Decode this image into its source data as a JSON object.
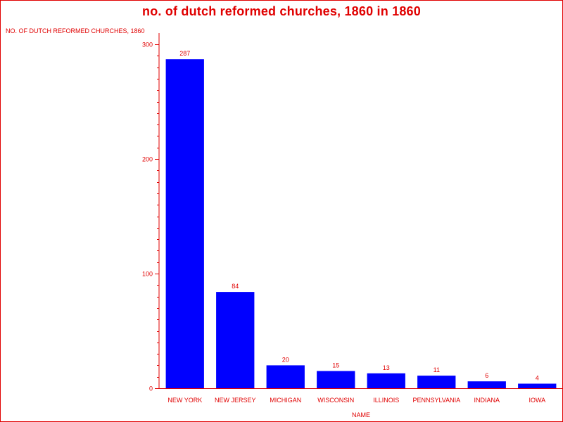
{
  "chart_data": {
    "type": "bar",
    "title": "no. of dutch reformed churches, 1860 in 1860",
    "ylabel": "NO. OF DUTCH REFORMED CHURCHES, 1860",
    "xlabel": "NAME",
    "categories": [
      "NEW YORK",
      "NEW JERSEY",
      "MICHIGAN",
      "WISCONSIN",
      "ILLINOIS",
      "PENNSYLVANIA",
      "INDIANA",
      "IOWA"
    ],
    "values": [
      287,
      84,
      20,
      15,
      13,
      11,
      6,
      4
    ],
    "value_labels": [
      "287",
      "84",
      "20",
      "15",
      "13",
      "11",
      "6",
      "4"
    ],
    "ylim": [
      0,
      300
    ],
    "yticks": [
      0,
      100,
      200,
      300
    ],
    "ytick_labels": [
      "0",
      "100",
      "200",
      "300"
    ],
    "grid": false,
    "legend": "none",
    "colors": {
      "bar": "#0000ff",
      "text": "#e00000",
      "axis": "#e00000"
    }
  }
}
